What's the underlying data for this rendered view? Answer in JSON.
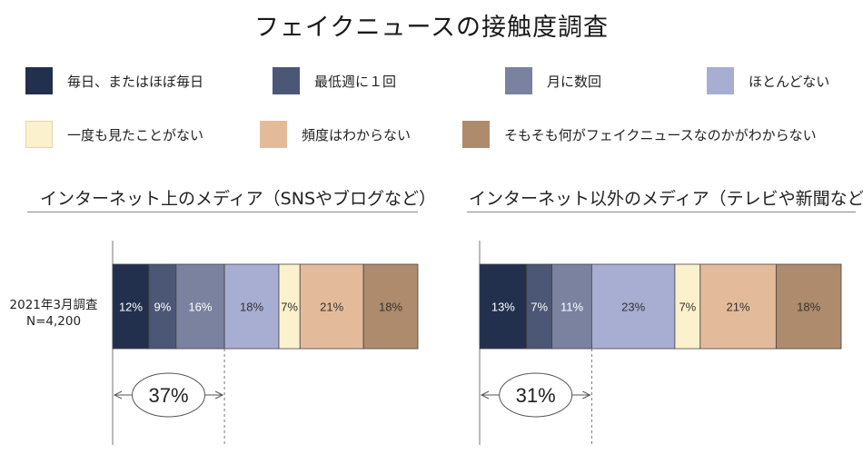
{
  "title": "フェイクニュースの接触度調査",
  "legend": [
    {
      "label": "毎日、またはほぼ毎日",
      "color": "#22304e"
    },
    {
      "label": "最低週に１回",
      "color": "#4c5775"
    },
    {
      "label": "月に数回",
      "color": "#7b829f"
    },
    {
      "label": "ほとんどない",
      "color": "#a8add2"
    },
    {
      "label": "一度も見たことがない",
      "color": "#fbf1cc"
    },
    {
      "label": "頻度はわからない",
      "color": "#e4bb9a"
    },
    {
      "label": "そもそも何がフェイクニュースなのかがわからない",
      "color": "#ad8b6c"
    }
  ],
  "row_label": {
    "line1": "2021年3月調査",
    "line2": "N=4,200"
  },
  "chart_data": [
    {
      "type": "bar",
      "stacked": true,
      "orientation": "horizontal",
      "title": "インターネット上のメディア（SNSやブログなど）",
      "categories": [
        "2021年3月調査 N=4,200"
      ],
      "series": [
        {
          "name": "毎日、またはほぼ毎日",
          "values": [
            12
          ],
          "label": "12%"
        },
        {
          "name": "最低週に１回",
          "values": [
            9
          ],
          "label": "9%"
        },
        {
          "name": "月に数回",
          "values": [
            16
          ],
          "label": "16%"
        },
        {
          "name": "ほとんどない",
          "values": [
            18
          ],
          "label": "18%"
        },
        {
          "name": "一度も見たことがない",
          "values": [
            7
          ],
          "label": "7%"
        },
        {
          "name": "頻度はわからない",
          "values": [
            21
          ],
          "label": "21%"
        },
        {
          "name": "そもそも何がフェイクニュースなのかがわからない",
          "values": [
            18
          ],
          "label": "18%"
        }
      ],
      "annotation": {
        "label": "37%",
        "span_series": 3
      },
      "unit": "%"
    },
    {
      "type": "bar",
      "stacked": true,
      "orientation": "horizontal",
      "title": "インターネット以外のメディア（テレビや新聞など）",
      "categories": [
        "2021年3月調査 N=4,200"
      ],
      "series": [
        {
          "name": "毎日、またはほぼ毎日",
          "values": [
            13
          ],
          "label": "13%"
        },
        {
          "name": "最低週に１回",
          "values": [
            7
          ],
          "label": "7%"
        },
        {
          "name": "月に数回",
          "values": [
            11
          ],
          "label": "11%"
        },
        {
          "name": "ほとんどない",
          "values": [
            23
          ],
          "label": "23%"
        },
        {
          "name": "一度も見たことがない",
          "values": [
            7
          ],
          "label": "7%"
        },
        {
          "name": "頻度はわからない",
          "values": [
            21
          ],
          "label": "21%"
        },
        {
          "name": "そもそも何がフェイクニュースなのかがわからない",
          "values": [
            18
          ],
          "label": "18%"
        }
      ],
      "annotation": {
        "label": "31%",
        "span_series": 3
      },
      "unit": "%"
    }
  ]
}
